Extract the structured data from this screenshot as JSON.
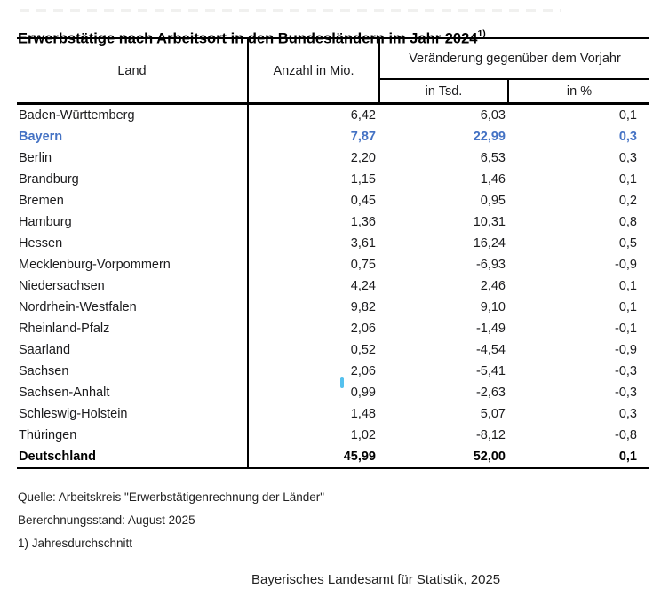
{
  "title": {
    "text": "Erwerbstätige nach Arbeitsort in den Bundesländern im Jahr 2024",
    "footnote_marker": "1)"
  },
  "table": {
    "headers": {
      "land": "Land",
      "anzahl": "Anzahl in Mio.",
      "veraenderung_group": "Veränderung gegenüber dem Vorjahr",
      "in_tsd": "in Tsd.",
      "in_pct": "in %"
    },
    "rows": [
      {
        "land": "Baden-Württemberg",
        "mio": "6,42",
        "tsd": "6,03",
        "pct": "0,1"
      },
      {
        "land": "Bayern",
        "mio": "7,87",
        "tsd": "22,99",
        "pct": "0,3",
        "style": "highlight"
      },
      {
        "land": "Berlin",
        "mio": "2,20",
        "tsd": "6,53",
        "pct": "0,3"
      },
      {
        "land": "Brandburg",
        "mio": "1,15",
        "tsd": "1,46",
        "pct": "0,1"
      },
      {
        "land": "Bremen",
        "mio": "0,45",
        "tsd": "0,95",
        "pct": "0,2"
      },
      {
        "land": "Hamburg",
        "mio": "1,36",
        "tsd": "10,31",
        "pct": "0,8"
      },
      {
        "land": "Hessen",
        "mio": "3,61",
        "tsd": "16,24",
        "pct": "0,5"
      },
      {
        "land": "Mecklenburg-Vorpommern",
        "mio": "0,75",
        "tsd": "-6,93",
        "pct": "-0,9"
      },
      {
        "land": "Niedersachsen",
        "mio": "4,24",
        "tsd": "2,46",
        "pct": "0,1"
      },
      {
        "land": "Nordrhein-Westfalen",
        "mio": "9,82",
        "tsd": "9,10",
        "pct": "0,1"
      },
      {
        "land": "Rheinland-Pfalz",
        "mio": "2,06",
        "tsd": "-1,49",
        "pct": "-0,1"
      },
      {
        "land": "Saarland",
        "mio": "0,52",
        "tsd": "-4,54",
        "pct": "-0,9"
      },
      {
        "land": "Sachsen",
        "mio": "2,06",
        "tsd": "-5,41",
        "pct": "-0,3"
      },
      {
        "land": "Sachsen-Anhalt",
        "mio": "0,99",
        "tsd": "-2,63",
        "pct": "-0,3",
        "cursor": true
      },
      {
        "land": "Schleswig-Holstein",
        "mio": "1,48",
        "tsd": "5,07",
        "pct": "0,3"
      },
      {
        "land": "Thüringen",
        "mio": "1,02",
        "tsd": "-8,12",
        "pct": "-0,8"
      },
      {
        "land": "Deutschland",
        "mio": "45,99",
        "tsd": "52,00",
        "pct": "0,1",
        "style": "total"
      }
    ]
  },
  "notes": {
    "source": "Quelle: Arbeitskreis \"Erwerbstätigenrechnung der Länder\"",
    "status": "Bererchnungsstand: August 2025",
    "footnote": "1) Jahresdurchschnitt"
  },
  "publisher": "Bayerisches Landesamt für Statistik, 2025",
  "colors": {
    "highlight_blue": "#4472C4",
    "cursor_blue": "#55C1EE"
  }
}
